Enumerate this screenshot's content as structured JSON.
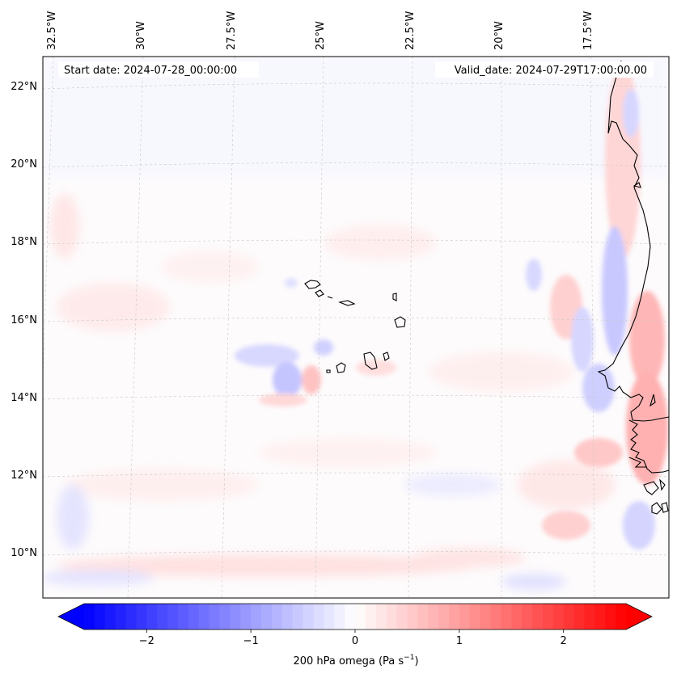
{
  "map": {
    "start_label": "Start date: 2024-07-28_00:00:00",
    "valid_label": "Valid_date: 2024-07-29T17:00:00.00",
    "lon_labels": [
      "32.5°W",
      "30°W",
      "27.5°W",
      "25°W",
      "22.5°W",
      "20°W",
      "17.5°W"
    ],
    "lat_labels": [
      "22°N",
      "20°N",
      "18°N",
      "16°N",
      "14°N",
      "12°N",
      "10°N"
    ],
    "field": "200 hPa omega",
    "coastline_color": "#000000",
    "gridline_color": "#c8c8c8"
  },
  "colorbar": {
    "label": "200 hPa omega (Pa s",
    "label_exp": "−1",
    "label_close": ")",
    "ticks": [
      "−2",
      "−1",
      "0",
      "1",
      "2"
    ],
    "tick_values": [
      -2,
      -1,
      0,
      1,
      2
    ],
    "range": [
      -2.6,
      2.6
    ],
    "colormap": "bwr",
    "color_min": "#0000ff",
    "color_mid": "#ffffff",
    "color_max": "#ff0000"
  }
}
